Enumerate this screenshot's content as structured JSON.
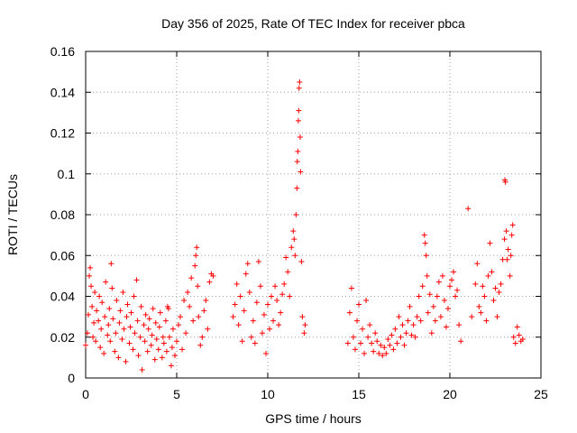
{
  "chart_data": {
    "type": "scatter",
    "title": "Day 356 of 2025, Rate Of TEC Index for receiver pbca",
    "xlabel": "GPS time / hours",
    "ylabel": "ROTI / TECUs",
    "xlim": [
      0,
      25
    ],
    "ylim": [
      0,
      0.16
    ],
    "xticks": [
      0,
      5,
      10,
      15,
      20,
      25
    ],
    "yticks": [
      0,
      0.02,
      0.04,
      0.06,
      0.08,
      0.1,
      0.12,
      0.14,
      0.16
    ],
    "xtick_labels": [
      "0",
      "5",
      "10",
      "15",
      "20",
      "25"
    ],
    "ytick_labels": [
      "0",
      "0.02",
      "0.04",
      "0.06",
      "0.08",
      "0.1",
      "0.12",
      "0.14",
      "0.16"
    ],
    "grid": true,
    "marker": "+",
    "color": "#ff0000",
    "series": [
      {
        "name": "ROTI",
        "points": [
          [
            0.0,
            0.016
          ],
          [
            0.1,
            0.022
          ],
          [
            0.15,
            0.031
          ],
          [
            0.2,
            0.05
          ],
          [
            0.25,
            0.054
          ],
          [
            0.3,
            0.045
          ],
          [
            0.35,
            0.035
          ],
          [
            0.4,
            0.02
          ],
          [
            0.45,
            0.027
          ],
          [
            0.5,
            0.042
          ],
          [
            0.55,
            0.018
          ],
          [
            0.6,
            0.033
          ],
          [
            0.7,
            0.028
          ],
          [
            0.75,
            0.04
          ],
          [
            0.8,
            0.015
          ],
          [
            0.85,
            0.024
          ],
          [
            0.9,
            0.037
          ],
          [
            1.0,
            0.012
          ],
          [
            1.05,
            0.03
          ],
          [
            1.1,
            0.047
          ],
          [
            1.2,
            0.021
          ],
          [
            1.25,
            0.026
          ],
          [
            1.3,
            0.034
          ],
          [
            1.35,
            0.018
          ],
          [
            1.4,
            0.056
          ],
          [
            1.45,
            0.044
          ],
          [
            1.5,
            0.029
          ],
          [
            1.6,
            0.013
          ],
          [
            1.65,
            0.022
          ],
          [
            1.7,
            0.038
          ],
          [
            1.8,
            0.01
          ],
          [
            1.85,
            0.027
          ],
          [
            1.9,
            0.033
          ],
          [
            2.0,
            0.019
          ],
          [
            2.05,
            0.042
          ],
          [
            2.1,
            0.024
          ],
          [
            2.2,
            0.008
          ],
          [
            2.25,
            0.03
          ],
          [
            2.3,
            0.036
          ],
          [
            2.4,
            0.017
          ],
          [
            2.45,
            0.025
          ],
          [
            2.5,
            0.032
          ],
          [
            2.6,
            0.014
          ],
          [
            2.65,
            0.04
          ],
          [
            2.7,
            0.022
          ],
          [
            2.8,
            0.048
          ],
          [
            2.85,
            0.028
          ],
          [
            2.9,
            0.011
          ],
          [
            3.0,
            0.02
          ],
          [
            3.05,
            0.035
          ],
          [
            3.1,
            0.004
          ],
          [
            3.2,
            0.026
          ],
          [
            3.25,
            0.018
          ],
          [
            3.3,
            0.031
          ],
          [
            3.4,
            0.013
          ],
          [
            3.45,
            0.024
          ],
          [
            3.5,
            0.029
          ],
          [
            3.6,
            0.016
          ],
          [
            3.65,
            0.021
          ],
          [
            3.7,
            0.034
          ],
          [
            3.8,
            0.009
          ],
          [
            3.85,
            0.027
          ],
          [
            3.9,
            0.019
          ],
          [
            4.0,
            0.014
          ],
          [
            4.05,
            0.025
          ],
          [
            4.1,
            0.032
          ],
          [
            4.2,
            0.01
          ],
          [
            4.25,
            0.02
          ],
          [
            4.3,
            0.017
          ],
          [
            4.4,
            0.028
          ],
          [
            4.45,
            0.013
          ],
          [
            4.5,
            0.035
          ],
          [
            4.55,
            0.034
          ],
          [
            4.6,
            0.02
          ],
          [
            4.7,
            0.006
          ],
          [
            4.75,
            0.015
          ],
          [
            4.8,
            0.024
          ],
          [
            4.9,
            0.011
          ],
          [
            5.0,
            0.018
          ],
          [
            5.1,
            0.026
          ],
          [
            5.2,
            0.03
          ],
          [
            5.3,
            0.014
          ],
          [
            5.4,
            0.038
          ],
          [
            5.5,
            0.022
          ],
          [
            5.6,
            0.042
          ],
          [
            5.7,
            0.035
          ],
          [
            5.8,
            0.049
          ],
          [
            5.9,
            0.028
          ],
          [
            6.0,
            0.055
          ],
          [
            6.05,
            0.06
          ],
          [
            6.1,
            0.064
          ],
          [
            6.15,
            0.045
          ],
          [
            6.2,
            0.03
          ],
          [
            6.3,
            0.016
          ],
          [
            6.4,
            0.02
          ],
          [
            6.5,
            0.033
          ],
          [
            6.6,
            0.038
          ],
          [
            6.7,
            0.024
          ],
          [
            6.8,
            0.047
          ],
          [
            6.9,
            0.051
          ],
          [
            7.0,
            0.05
          ],
          [
            8.1,
            0.03
          ],
          [
            8.2,
            0.036
          ],
          [
            8.3,
            0.046
          ],
          [
            8.4,
            0.026
          ],
          [
            8.5,
            0.04
          ],
          [
            8.6,
            0.018
          ],
          [
            8.7,
            0.033
          ],
          [
            8.8,
            0.051
          ],
          [
            8.9,
            0.056
          ],
          [
            9.0,
            0.042
          ],
          [
            9.1,
            0.02
          ],
          [
            9.2,
            0.028
          ],
          [
            9.3,
            0.017
          ],
          [
            9.4,
            0.037
          ],
          [
            9.5,
            0.057
          ],
          [
            9.6,
            0.045
          ],
          [
            9.7,
            0.022
          ],
          [
            9.8,
            0.031
          ],
          [
            9.9,
            0.012
          ],
          [
            10.0,
            0.036
          ],
          [
            10.1,
            0.024
          ],
          [
            10.2,
            0.04
          ],
          [
            10.3,
            0.028
          ],
          [
            10.4,
            0.045
          ],
          [
            10.5,
            0.038
          ],
          [
            10.6,
            0.026
          ],
          [
            10.7,
            0.032
          ],
          [
            10.8,
            0.041
          ],
          [
            10.9,
            0.046
          ],
          [
            11.0,
            0.059
          ],
          [
            11.1,
            0.052
          ],
          [
            11.2,
            0.04
          ],
          [
            11.3,
            0.064
          ],
          [
            11.4,
            0.072
          ],
          [
            11.45,
            0.068
          ],
          [
            11.5,
            0.06
          ],
          [
            11.55,
            0.08
          ],
          [
            11.6,
            0.093
          ],
          [
            11.62,
            0.106
          ],
          [
            11.65,
            0.111
          ],
          [
            11.68,
            0.126
          ],
          [
            11.7,
            0.131
          ],
          [
            11.72,
            0.142
          ],
          [
            11.75,
            0.145
          ],
          [
            11.78,
            0.118
          ],
          [
            11.8,
            0.101
          ],
          [
            11.85,
            0.057
          ],
          [
            11.9,
            0.03
          ],
          [
            12.0,
            0.022
          ],
          [
            12.05,
            0.026
          ],
          [
            14.4,
            0.017
          ],
          [
            14.5,
            0.032
          ],
          [
            14.6,
            0.044
          ],
          [
            14.7,
            0.02
          ],
          [
            14.8,
            0.014
          ],
          [
            14.9,
            0.028
          ],
          [
            15.0,
            0.036
          ],
          [
            15.1,
            0.017
          ],
          [
            15.2,
            0.024
          ],
          [
            15.3,
            0.012
          ],
          [
            15.4,
            0.038
          ],
          [
            15.5,
            0.02
          ],
          [
            15.6,
            0.026
          ],
          [
            15.7,
            0.017
          ],
          [
            15.8,
            0.013
          ],
          [
            15.9,
            0.022
          ],
          [
            16.0,
            0.018
          ],
          [
            16.1,
            0.012
          ],
          [
            16.2,
            0.016
          ],
          [
            16.3,
            0.011
          ],
          [
            16.4,
            0.015
          ],
          [
            16.5,
            0.012
          ],
          [
            16.6,
            0.019
          ],
          [
            16.7,
            0.016
          ],
          [
            16.8,
            0.021
          ],
          [
            16.9,
            0.014
          ],
          [
            17.0,
            0.024
          ],
          [
            17.1,
            0.017
          ],
          [
            17.2,
            0.03
          ],
          [
            17.3,
            0.02
          ],
          [
            17.4,
            0.026
          ],
          [
            17.5,
            0.016
          ],
          [
            17.6,
            0.022
          ],
          [
            17.7,
            0.028
          ],
          [
            17.8,
            0.035
          ],
          [
            17.9,
            0.021
          ],
          [
            18.0,
            0.026
          ],
          [
            18.1,
            0.02
          ],
          [
            18.2,
            0.03
          ],
          [
            18.3,
            0.04
          ],
          [
            18.4,
            0.028
          ],
          [
            18.5,
            0.045
          ],
          [
            18.6,
            0.07
          ],
          [
            18.65,
            0.066
          ],
          [
            18.7,
            0.06
          ],
          [
            18.75,
            0.05
          ],
          [
            18.8,
            0.032
          ],
          [
            18.9,
            0.041
          ],
          [
            19.0,
            0.022
          ],
          [
            19.1,
            0.035
          ],
          [
            19.2,
            0.028
          ],
          [
            19.3,
            0.04
          ],
          [
            19.4,
            0.047
          ],
          [
            19.5,
            0.03
          ],
          [
            19.6,
            0.05
          ],
          [
            19.7,
            0.038
          ],
          [
            19.8,
            0.025
          ],
          [
            19.9,
            0.034
          ],
          [
            20.0,
            0.045
          ],
          [
            20.1,
            0.048
          ],
          [
            20.2,
            0.052
          ],
          [
            20.3,
            0.04
          ],
          [
            20.4,
            0.043
          ],
          [
            20.5,
            0.026
          ],
          [
            20.6,
            0.018
          ],
          [
            21.0,
            0.083
          ],
          [
            21.2,
            0.03
          ],
          [
            21.4,
            0.046
          ],
          [
            21.5,
            0.056
          ],
          [
            21.6,
            0.035
          ],
          [
            21.7,
            0.032
          ],
          [
            21.8,
            0.045
          ],
          [
            21.9,
            0.04
          ],
          [
            22.0,
            0.028
          ],
          [
            22.1,
            0.05
          ],
          [
            22.2,
            0.066
          ],
          [
            22.3,
            0.052
          ],
          [
            22.4,
            0.038
          ],
          [
            22.5,
            0.044
          ],
          [
            22.6,
            0.03
          ],
          [
            22.7,
            0.042
          ],
          [
            22.8,
            0.046
          ],
          [
            22.9,
            0.058
          ],
          [
            23.0,
            0.068
          ],
          [
            23.02,
            0.097
          ],
          [
            23.05,
            0.096
          ],
          [
            23.1,
            0.072
          ],
          [
            23.15,
            0.058
          ],
          [
            23.2,
            0.063
          ],
          [
            23.3,
            0.05
          ],
          [
            23.35,
            0.06
          ],
          [
            23.4,
            0.07
          ],
          [
            23.45,
            0.075
          ],
          [
            23.5,
            0.02
          ],
          [
            23.6,
            0.017
          ],
          [
            23.7,
            0.025
          ],
          [
            23.8,
            0.021
          ],
          [
            23.9,
            0.018
          ],
          [
            24.0,
            0.019
          ]
        ]
      }
    ]
  }
}
